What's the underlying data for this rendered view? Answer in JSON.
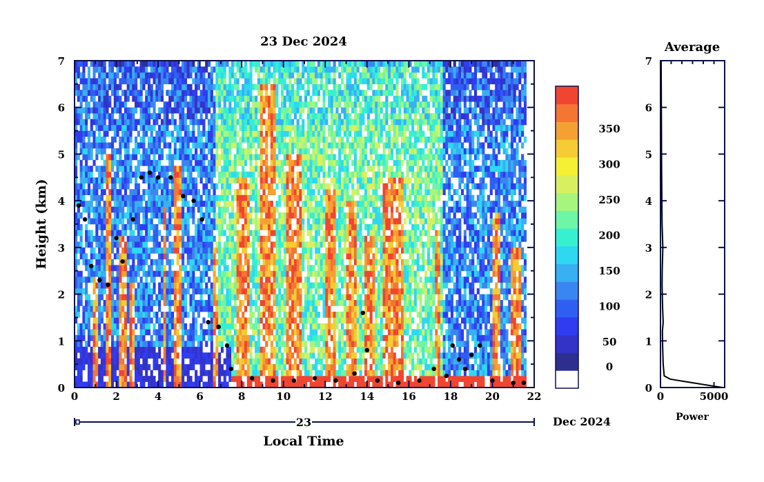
{
  "chart_data": [
    {
      "type": "heatmap",
      "title": "23 Dec 2024",
      "xlabel": "Local Time",
      "ylabel": "Height (km)",
      "xlim": [
        0,
        22
      ],
      "ylim": [
        0,
        7
      ],
      "x_ticks": [
        "0",
        "2",
        "4",
        "6",
        "8",
        "10",
        "12",
        "14",
        "16",
        "18",
        "20",
        "22"
      ],
      "y_ticks": [
        "0",
        "1",
        "2",
        "3",
        "4",
        "5",
        "6",
        "7"
      ],
      "date_bar": {
        "day_label": "23",
        "date_label": "Dec 2024"
      },
      "data_end_time": 21.6,
      "colorbar": {
        "tick_labels": [
          "0",
          "50",
          "100",
          "150",
          "200",
          "250",
          "300",
          "350"
        ],
        "levels": [
          0,
          50,
          100,
          150,
          200,
          250,
          300,
          350
        ],
        "colors": [
          "#ffffff",
          "#2e2e8f",
          "#3333c8",
          "#2f3cf0",
          "#2f5ef2",
          "#3a86f0",
          "#38b0f2",
          "#2ed8f0",
          "#36f0d0",
          "#6ef5a6",
          "#a8f57e",
          "#d8f060",
          "#f5f033",
          "#f5cc33",
          "#f5a033",
          "#f57533",
          "#f04530"
        ]
      },
      "strong_echo_columns": [
        {
          "start": 0.9,
          "end": 1.1,
          "top": 2.4
        },
        {
          "start": 1.5,
          "end": 1.75,
          "top": 5.0
        },
        {
          "start": 2.1,
          "end": 2.5,
          "top": 3.2
        },
        {
          "start": 2.6,
          "end": 2.85,
          "top": 2.2
        },
        {
          "start": 4.2,
          "end": 4.4,
          "top": 3.9
        },
        {
          "start": 4.75,
          "end": 5.15,
          "top": 4.7
        },
        {
          "start": 6.6,
          "end": 6.85,
          "top": 3.0
        },
        {
          "start": 7.8,
          "end": 8.4,
          "top": 4.5
        },
        {
          "start": 8.9,
          "end": 9.6,
          "top": 6.5
        },
        {
          "start": 10.1,
          "end": 10.9,
          "top": 5.0
        },
        {
          "start": 12.0,
          "end": 12.5,
          "top": 4.2
        },
        {
          "start": 13.0,
          "end": 13.5,
          "top": 4.0
        },
        {
          "start": 13.9,
          "end": 14.4,
          "top": 3.2
        },
        {
          "start": 14.8,
          "end": 15.8,
          "top": 4.5
        },
        {
          "start": 17.3,
          "end": 17.5,
          "top": 3.4
        },
        {
          "start": 20.0,
          "end": 20.4,
          "top": 3.8
        },
        {
          "start": 20.9,
          "end": 21.4,
          "top": 3.0
        }
      ],
      "surface_layer": [
        {
          "start": 0.0,
          "end": 7.5,
          "top": 0.9,
          "level": "low"
        },
        {
          "start": 7.5,
          "end": 21.6,
          "top": 0.22,
          "level": "high"
        }
      ],
      "dotted_layer_heights": [
        {
          "x": 0.2,
          "y": 3.9
        },
        {
          "x": 0.5,
          "y": 3.6
        },
        {
          "x": 0.8,
          "y": 2.6
        },
        {
          "x": 1.2,
          "y": 2.3
        },
        {
          "x": 1.6,
          "y": 2.2
        },
        {
          "x": 2.0,
          "y": 3.2
        },
        {
          "x": 2.3,
          "y": 2.7
        },
        {
          "x": 2.8,
          "y": 3.6
        },
        {
          "x": 3.2,
          "y": 4.5
        },
        {
          "x": 3.6,
          "y": 4.6
        },
        {
          "x": 4.0,
          "y": 4.5
        },
        {
          "x": 4.6,
          "y": 4.5
        },
        {
          "x": 5.2,
          "y": 4.1
        },
        {
          "x": 5.7,
          "y": 4.0
        },
        {
          "x": 6.1,
          "y": 3.6
        },
        {
          "x": 6.4,
          "y": 1.4
        },
        {
          "x": 6.9,
          "y": 1.3
        },
        {
          "x": 7.3,
          "y": 0.9
        },
        {
          "x": 7.5,
          "y": 0.4
        },
        {
          "x": 8.5,
          "y": 0.2
        },
        {
          "x": 9.5,
          "y": 0.15
        },
        {
          "x": 10.5,
          "y": 0.15
        },
        {
          "x": 11.5,
          "y": 0.2
        },
        {
          "x": 12.5,
          "y": 0.15
        },
        {
          "x": 13.4,
          "y": 0.3
        },
        {
          "x": 13.8,
          "y": 1.6
        },
        {
          "x": 14.0,
          "y": 0.8
        },
        {
          "x": 14.5,
          "y": 0.15
        },
        {
          "x": 15.5,
          "y": 0.1
        },
        {
          "x": 16.5,
          "y": 0.15
        },
        {
          "x": 17.2,
          "y": 0.4
        },
        {
          "x": 17.8,
          "y": 0.25
        },
        {
          "x": 18.1,
          "y": 0.9
        },
        {
          "x": 18.4,
          "y": 0.6
        },
        {
          "x": 18.7,
          "y": 0.4
        },
        {
          "x": 19.0,
          "y": 0.7
        },
        {
          "x": 19.4,
          "y": 0.9
        },
        {
          "x": 20.0,
          "y": 0.15
        },
        {
          "x": 21.0,
          "y": 0.1
        },
        {
          "x": 21.5,
          "y": 0.1
        }
      ]
    },
    {
      "type": "line",
      "title": "Average",
      "xlabel": "Power",
      "ylabel": "",
      "xlim": [
        0,
        6000
      ],
      "ylim": [
        0,
        7
      ],
      "x_ticks": [
        "0",
        "5000"
      ],
      "y_ticks": [
        "0",
        "1",
        "2",
        "3",
        "4",
        "5",
        "6",
        "7"
      ],
      "x": [
        5800,
        2500,
        900,
        350,
        250,
        200,
        180,
        250,
        200,
        150,
        160,
        220,
        150,
        130,
        120,
        110,
        100,
        90,
        80,
        60
      ],
      "y": [
        0.0,
        0.12,
        0.18,
        0.25,
        0.5,
        0.9,
        1.2,
        1.4,
        1.7,
        2.2,
        2.5,
        3.0,
        3.5,
        3.9,
        4.2,
        4.5,
        5.0,
        5.5,
        6.2,
        7.0
      ]
    }
  ]
}
